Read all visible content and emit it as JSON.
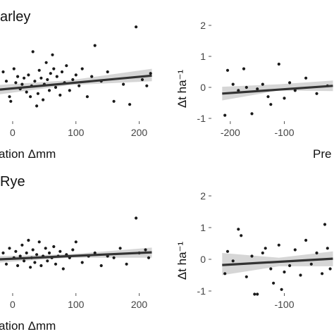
{
  "chart_data": [
    {
      "type": "scatter",
      "title": "arley",
      "xlabel": "ation Δmm",
      "ylabel": "",
      "xlim": [
        -20,
        225
      ],
      "ylim": [
        -1.15,
        2.2
      ],
      "xticks": [
        0,
        100,
        200
      ],
      "x_tick_labels": [
        "0",
        "100",
        "200"
      ],
      "yticks": [],
      "grid": false,
      "points": [
        {
          "x": -15,
          "y": 0.5
        },
        {
          "x": -10,
          "y": 0.2
        },
        {
          "x": -5,
          "y": -0.3
        },
        {
          "x": -3,
          "y": -0.45
        },
        {
          "x": 2,
          "y": 0.6
        },
        {
          "x": 5,
          "y": 0.15
        },
        {
          "x": 8,
          "y": 0.35
        },
        {
          "x": 12,
          "y": -0.05
        },
        {
          "x": 15,
          "y": 0.1
        },
        {
          "x": 18,
          "y": 0.3
        },
        {
          "x": 22,
          "y": -0.15
        },
        {
          "x": 25,
          "y": 0.4
        },
        {
          "x": 28,
          "y": -0.3
        },
        {
          "x": 30,
          "y": 0.05
        },
        {
          "x": 32,
          "y": 1.15
        },
        {
          "x": 35,
          "y": 0.2
        },
        {
          "x": 38,
          "y": -0.6
        },
        {
          "x": 40,
          "y": -0.2
        },
        {
          "x": 42,
          "y": 0.55
        },
        {
          "x": 45,
          "y": 0.3
        },
        {
          "x": 48,
          "y": -0.4
        },
        {
          "x": 50,
          "y": 0.1
        },
        {
          "x": 53,
          "y": 0.8
        },
        {
          "x": 55,
          "y": 0.25
        },
        {
          "x": 58,
          "y": -0.1
        },
        {
          "x": 60,
          "y": 0.45
        },
        {
          "x": 63,
          "y": 1.05
        },
        {
          "x": 65,
          "y": 0.6
        },
        {
          "x": 68,
          "y": 0.0
        },
        {
          "x": 70,
          "y": 0.35
        },
        {
          "x": 75,
          "y": -0.25
        },
        {
          "x": 78,
          "y": 0.5
        },
        {
          "x": 82,
          "y": 0.15
        },
        {
          "x": 85,
          "y": 0.7
        },
        {
          "x": 90,
          "y": -0.1
        },
        {
          "x": 95,
          "y": 0.25
        },
        {
          "x": 100,
          "y": 0.4
        },
        {
          "x": 105,
          "y": 0.05
        },
        {
          "x": 110,
          "y": 0.6
        },
        {
          "x": 118,
          "y": -0.3
        },
        {
          "x": 125,
          "y": 0.35
        },
        {
          "x": 130,
          "y": 1.35
        },
        {
          "x": 140,
          "y": 0.2
        },
        {
          "x": 150,
          "y": 0.5
        },
        {
          "x": 160,
          "y": -0.45
        },
        {
          "x": 175,
          "y": 0.1
        },
        {
          "x": 185,
          "y": -0.55
        },
        {
          "x": 195,
          "y": 1.95
        },
        {
          "x": 205,
          "y": 0.25
        },
        {
          "x": 212,
          "y": 0.05
        },
        {
          "x": 218,
          "y": 0.45
        }
      ],
      "fit_line": {
        "x0": -20,
        "y0": -0.07,
        "x1": 220,
        "y1": 0.38
      },
      "confidence_band": {
        "x0": -20,
        "lower0": -0.22,
        "upper0": 0.08,
        "xmid": 90,
        "lowermid": 0.07,
        "uppermid": 0.23,
        "x1": 220,
        "lower1": 0.2,
        "upper1": 0.6
      }
    },
    {
      "type": "scatter",
      "title": "",
      "xlabel": "Pre",
      "ylabel": "Δt ha⁻¹",
      "xlim": [
        -235,
        -8
      ],
      "ylim": [
        -1.15,
        2.2
      ],
      "xticks": [
        -200,
        -100
      ],
      "x_tick_labels": [
        "-200",
        "-100"
      ],
      "yticks": [
        -1,
        0,
        1,
        2
      ],
      "y_tick_labels": [
        "-1",
        "0",
        "1",
        "2"
      ],
      "grid": false,
      "points": [
        {
          "x": -210,
          "y": -0.9
        },
        {
          "x": -205,
          "y": 0.55
        },
        {
          "x": -195,
          "y": 0.1
        },
        {
          "x": -185,
          "y": -0.1
        },
        {
          "x": -175,
          "y": 0.6
        },
        {
          "x": -170,
          "y": 0.0
        },
        {
          "x": -160,
          "y": -0.85
        },
        {
          "x": -150,
          "y": -0.05
        },
        {
          "x": -140,
          "y": 0.1
        },
        {
          "x": -130,
          "y": -0.3
        },
        {
          "x": -125,
          "y": -0.55
        },
        {
          "x": -110,
          "y": 0.75
        },
        {
          "x": -100,
          "y": -0.35
        },
        {
          "x": -90,
          "y": 0.15
        },
        {
          "x": -80,
          "y": -0.1
        },
        {
          "x": -60,
          "y": 0.3
        },
        {
          "x": -40,
          "y": -0.2
        },
        {
          "x": -20,
          "y": 0.05
        }
      ],
      "fit_line": {
        "x0": -215,
        "y0": -0.2,
        "x1": -10,
        "y1": 0.05
      },
      "confidence_band": {
        "x0": -215,
        "lower0": -0.42,
        "upper0": 0.02,
        "xmid": -110,
        "lowermid": -0.1,
        "uppermid": 0.1,
        "x1": -10,
        "lower1": -0.12,
        "upper1": 0.22
      }
    },
    {
      "type": "scatter",
      "title": "Rye",
      "xlabel": "ation Δmm",
      "ylabel": "",
      "xlim": [
        -20,
        225
      ],
      "ylim": [
        -1.15,
        2.2
      ],
      "xticks": [
        0,
        100,
        200
      ],
      "x_tick_labels": [
        "0",
        "100",
        "200"
      ],
      "yticks": [],
      "grid": false,
      "points": [
        {
          "x": -15,
          "y": 0.2
        },
        {
          "x": -10,
          "y": -0.15
        },
        {
          "x": -5,
          "y": 0.35
        },
        {
          "x": 2,
          "y": 0.05
        },
        {
          "x": 5,
          "y": 0.25
        },
        {
          "x": 8,
          "y": -0.2
        },
        {
          "x": 12,
          "y": 0.1
        },
        {
          "x": 15,
          "y": 0.45
        },
        {
          "x": 18,
          "y": -0.05
        },
        {
          "x": 22,
          "y": 0.2
        },
        {
          "x": 25,
          "y": 0.6
        },
        {
          "x": 28,
          "y": -0.25
        },
        {
          "x": 30,
          "y": 0.05
        },
        {
          "x": 32,
          "y": 0.3
        },
        {
          "x": 35,
          "y": -0.1
        },
        {
          "x": 38,
          "y": 0.15
        },
        {
          "x": 42,
          "y": 0.55
        },
        {
          "x": 45,
          "y": -0.2
        },
        {
          "x": 48,
          "y": 0.1
        },
        {
          "x": 52,
          "y": 0.35
        },
        {
          "x": 55,
          "y": -0.05
        },
        {
          "x": 58,
          "y": 0.2
        },
        {
          "x": 62,
          "y": 0.05
        },
        {
          "x": 65,
          "y": 0.4
        },
        {
          "x": 68,
          "y": -0.15
        },
        {
          "x": 72,
          "y": 0.1
        },
        {
          "x": 75,
          "y": 0.25
        },
        {
          "x": 80,
          "y": -0.3
        },
        {
          "x": 85,
          "y": 0.15
        },
        {
          "x": 90,
          "y": 0.05
        },
        {
          "x": 95,
          "y": 0.3
        },
        {
          "x": 100,
          "y": 0.55
        },
        {
          "x": 110,
          "y": -0.1
        },
        {
          "x": 120,
          "y": 0.1
        },
        {
          "x": 130,
          "y": 0.2
        },
        {
          "x": 140,
          "y": -0.2
        },
        {
          "x": 150,
          "y": 0.1
        },
        {
          "x": 160,
          "y": 0.05
        },
        {
          "x": 170,
          "y": 0.35
        },
        {
          "x": 180,
          "y": -0.15
        },
        {
          "x": 195,
          "y": 1.3
        },
        {
          "x": 200,
          "y": 0.2
        },
        {
          "x": 210,
          "y": 0.3
        },
        {
          "x": 215,
          "y": 0.05
        }
      ],
      "fit_line": {
        "x0": -20,
        "y0": 0.0,
        "x1": 220,
        "y1": 0.22
      },
      "confidence_band": {
        "x0": -20,
        "lower0": -0.1,
        "upper0": 0.1,
        "xmid": 90,
        "lowermid": 0.05,
        "uppermid": 0.16,
        "x1": 220,
        "lower1": 0.05,
        "upper1": 0.37
      }
    },
    {
      "type": "scatter",
      "title": "",
      "xlabel": "",
      "ylabel": "Δt ha⁻¹",
      "xlim": [
        -235,
        -8
      ],
      "ylim": [
        -1.15,
        2.2
      ],
      "xticks": [
        -100
      ],
      "x_tick_labels": [
        "-100"
      ],
      "yticks": [
        -1,
        0,
        1,
        2
      ],
      "y_tick_labels": [
        "-1",
        "0",
        "1",
        "2"
      ],
      "grid": false,
      "points": [
        {
          "x": -210,
          "y": -0.45
        },
        {
          "x": -205,
          "y": 0.25
        },
        {
          "x": -195,
          "y": -0.05
        },
        {
          "x": -185,
          "y": 0.95
        },
        {
          "x": -180,
          "y": 0.75
        },
        {
          "x": -170,
          "y": -0.55
        },
        {
          "x": -160,
          "y": 0.1
        },
        {
          "x": -155,
          "y": -1.1
        },
        {
          "x": -150,
          "y": -1.1
        },
        {
          "x": -140,
          "y": 0.2
        },
        {
          "x": -135,
          "y": 0.35
        },
        {
          "x": -125,
          "y": -0.3
        },
        {
          "x": -120,
          "y": -0.75
        },
        {
          "x": -110,
          "y": 0.45
        },
        {
          "x": -105,
          "y": -0.95
        },
        {
          "x": -100,
          "y": -0.4
        },
        {
          "x": -90,
          "y": -0.2
        },
        {
          "x": -80,
          "y": 0.3
        },
        {
          "x": -70,
          "y": -0.5
        },
        {
          "x": -60,
          "y": 0.6
        },
        {
          "x": -50,
          "y": -0.15
        },
        {
          "x": -40,
          "y": 0.2
        },
        {
          "x": -30,
          "y": -0.45
        },
        {
          "x": -25,
          "y": 1.1
        },
        {
          "x": -20,
          "y": 0.35
        },
        {
          "x": -15,
          "y": -0.3
        }
      ],
      "fit_line": {
        "x0": -215,
        "y0": -0.18,
        "x1": -10,
        "y1": 0.02
      },
      "confidence_band": {
        "x0": -215,
        "lower0": -0.5,
        "upper0": 0.2,
        "xmid": -110,
        "lowermid": -0.22,
        "uppermid": 0.05,
        "x1": -10,
        "lower1": -0.22,
        "upper1": 0.25
      }
    }
  ]
}
